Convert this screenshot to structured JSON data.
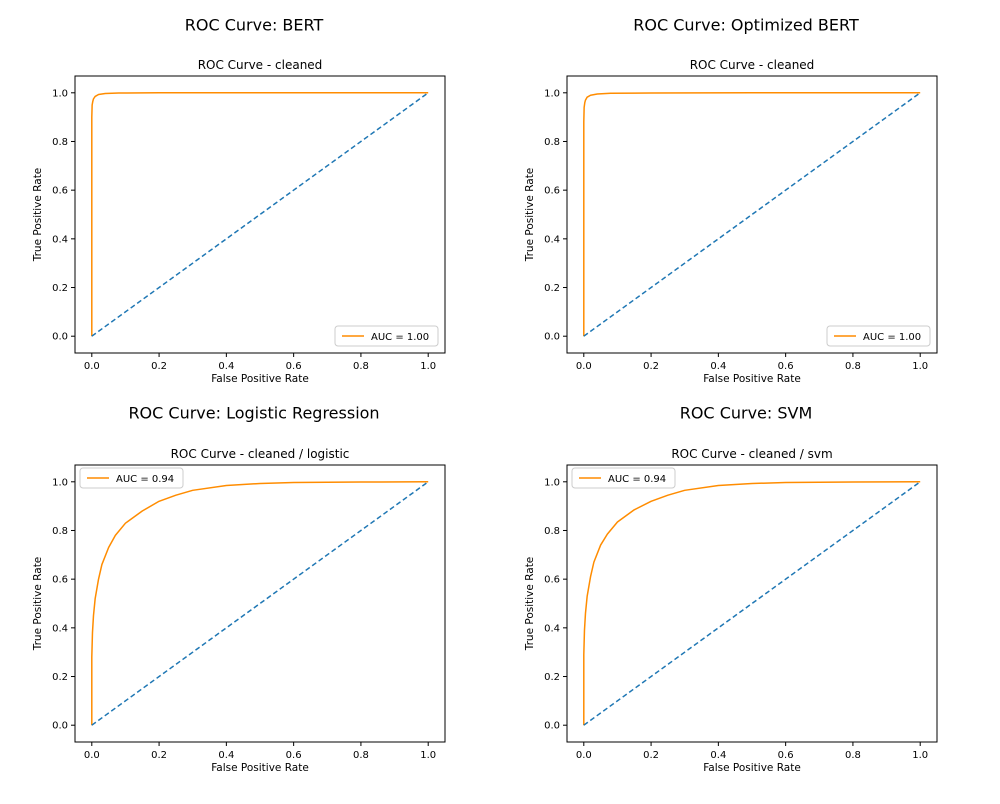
{
  "chart_data": [
    {
      "type": "line",
      "figure_title": "ROC Curve: BERT",
      "title": "ROC Curve - cleaned",
      "xlabel": "False Positive Rate",
      "ylabel": "True Positive Rate",
      "xlim": [
        0,
        1
      ],
      "ylim": [
        0,
        1
      ],
      "xticks": [
        "0.0",
        "0.2",
        "0.4",
        "0.6",
        "0.8",
        "1.0"
      ],
      "yticks": [
        "0.0",
        "0.2",
        "0.4",
        "0.6",
        "0.8",
        "1.0"
      ],
      "grid": false,
      "legend_position": "lower right",
      "series": [
        {
          "name": "AUC = 1.00",
          "color": "#ff8c00",
          "style": "solid",
          "x": [
            0,
            0,
            0.001,
            0.003,
            0.005,
            0.01,
            0.02,
            0.04,
            0.08,
            0.2,
            0.5,
            1.0
          ],
          "y": [
            0,
            0.9,
            0.95,
            0.965,
            0.975,
            0.985,
            0.993,
            0.997,
            0.999,
            1.0,
            1.0,
            1.0
          ]
        },
        {
          "color": "#1f77b4",
          "style": "dashed",
          "x": [
            0,
            1
          ],
          "y": [
            0,
            1
          ]
        }
      ]
    },
    {
      "type": "line",
      "figure_title": "ROC Curve: Optimized BERT",
      "title": "ROC Curve - cleaned",
      "xlabel": "False Positive Rate",
      "ylabel": "True Positive Rate",
      "xlim": [
        0,
        1
      ],
      "ylim": [
        0,
        1
      ],
      "xticks": [
        "0.0",
        "0.2",
        "0.4",
        "0.6",
        "0.8",
        "1.0"
      ],
      "yticks": [
        "0.0",
        "0.2",
        "0.4",
        "0.6",
        "0.8",
        "1.0"
      ],
      "grid": false,
      "legend_position": "lower right",
      "series": [
        {
          "name": "AUC = 1.00",
          "color": "#ff8c00",
          "style": "solid",
          "x": [
            0,
            0,
            0.001,
            0.003,
            0.005,
            0.01,
            0.02,
            0.04,
            0.08,
            0.2,
            0.5,
            1.0
          ],
          "y": [
            0,
            0.88,
            0.94,
            0.96,
            0.97,
            0.982,
            0.99,
            0.995,
            0.998,
            0.999,
            1.0,
            1.0
          ]
        },
        {
          "color": "#1f77b4",
          "style": "dashed",
          "x": [
            0,
            1
          ],
          "y": [
            0,
            1
          ]
        }
      ]
    },
    {
      "type": "line",
      "figure_title": "ROC Curve: Logistic Regression",
      "title": "ROC Curve - cleaned / logistic",
      "xlabel": "False Positive Rate",
      "ylabel": "True Positive Rate",
      "xlim": [
        0,
        1
      ],
      "ylim": [
        0,
        1
      ],
      "xticks": [
        "0.0",
        "0.2",
        "0.4",
        "0.6",
        "0.8",
        "1.0"
      ],
      "yticks": [
        "0.0",
        "0.2",
        "0.4",
        "0.6",
        "0.8",
        "1.0"
      ],
      "grid": false,
      "legend_position": "upper left",
      "series": [
        {
          "name": "AUC = 0.94",
          "color": "#ff8c00",
          "style": "solid",
          "x": [
            0,
            0,
            0.002,
            0.005,
            0.01,
            0.02,
            0.03,
            0.05,
            0.07,
            0.1,
            0.15,
            0.2,
            0.25,
            0.3,
            0.4,
            0.5,
            0.6,
            0.8,
            1.0
          ],
          "y": [
            0,
            0.28,
            0.38,
            0.45,
            0.52,
            0.6,
            0.66,
            0.73,
            0.78,
            0.83,
            0.88,
            0.92,
            0.945,
            0.965,
            0.985,
            0.993,
            0.997,
            0.999,
            1.0
          ]
        },
        {
          "color": "#1f77b4",
          "style": "dashed",
          "x": [
            0,
            1
          ],
          "y": [
            0,
            1
          ]
        }
      ]
    },
    {
      "type": "line",
      "figure_title": "ROC Curve: SVM",
      "title": "ROC Curve - cleaned / svm",
      "xlabel": "False Positive Rate",
      "ylabel": "True Positive Rate",
      "xlim": [
        0,
        1
      ],
      "ylim": [
        0,
        1
      ],
      "xticks": [
        "0.0",
        "0.2",
        "0.4",
        "0.6",
        "0.8",
        "1.0"
      ],
      "yticks": [
        "0.0",
        "0.2",
        "0.4",
        "0.6",
        "0.8",
        "1.0"
      ],
      "grid": false,
      "legend_position": "upper left",
      "series": [
        {
          "name": "AUC = 0.94",
          "color": "#ff8c00",
          "style": "solid",
          "x": [
            0,
            0,
            0.002,
            0.005,
            0.01,
            0.02,
            0.03,
            0.05,
            0.07,
            0.1,
            0.15,
            0.2,
            0.25,
            0.3,
            0.4,
            0.5,
            0.6,
            0.8,
            1.0
          ],
          "y": [
            0,
            0.29,
            0.39,
            0.46,
            0.53,
            0.61,
            0.67,
            0.74,
            0.785,
            0.835,
            0.885,
            0.92,
            0.945,
            0.965,
            0.985,
            0.993,
            0.997,
            0.999,
            1.0
          ]
        },
        {
          "color": "#1f77b4",
          "style": "dashed",
          "x": [
            0,
            1
          ],
          "y": [
            0,
            1
          ]
        }
      ]
    }
  ]
}
